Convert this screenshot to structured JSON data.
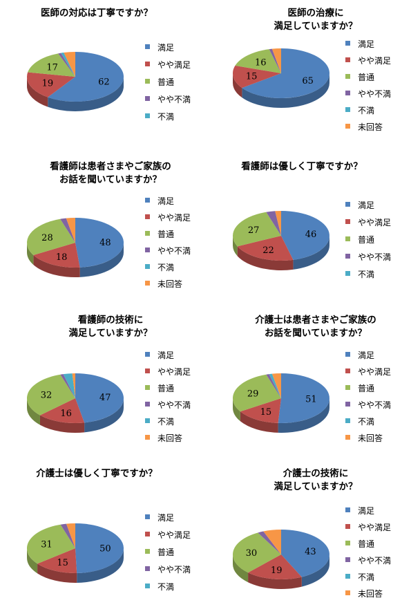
{
  "legend_labels": [
    "満足",
    "やや満足",
    "普通",
    "やや不満",
    "不満",
    "未回答"
  ],
  "colors": [
    "#4F81BD",
    "#C0504D",
    "#9BBB59",
    "#8064A2",
    "#4BACC6",
    "#F79646"
  ],
  "chart_data": [
    {
      "type": "pie",
      "title": "医師の対応は丁寧ですか？",
      "categories": [
        "満足",
        "やや満足",
        "普通",
        "やや不満",
        "不満",
        "未回答"
      ],
      "values": [
        62,
        19,
        17,
        1,
        1,
        4
      ],
      "data_labels": [
        "62",
        "19",
        "17",
        "",
        "",
        ""
      ],
      "legend": [
        "満足",
        "やや満足",
        "普通",
        "やや不満",
        "不満"
      ]
    },
    {
      "type": "pie",
      "title": "医師の治療に\n満足していますか？",
      "categories": [
        "満足",
        "やや満足",
        "普通",
        "やや不満",
        "不満",
        "未回答"
      ],
      "values": [
        65,
        15,
        16,
        1,
        0,
        3
      ],
      "data_labels": [
        "65",
        "15",
        "16",
        "",
        "",
        ""
      ],
      "legend": [
        "満足",
        "やや満足",
        "普通",
        "やや不満",
        "不満",
        "未回答"
      ]
    },
    {
      "type": "pie",
      "title": "看護師は患者さまやご家族の\nお話を聞いていますか？",
      "categories": [
        "満足",
        "やや満足",
        "普通",
        "やや不満",
        "不満",
        "未回答"
      ],
      "values": [
        48,
        18,
        28,
        2,
        0,
        3
      ],
      "data_labels": [
        "48",
        "18",
        "28",
        "",
        "",
        ""
      ],
      "legend": [
        "満足",
        "やや満足",
        "普通",
        "やや不満",
        "不満",
        "未回答"
      ]
    },
    {
      "type": "pie",
      "title": "看護師は優しく丁寧ですか？",
      "categories": [
        "満足",
        "やや満足",
        "普通",
        "やや不満",
        "不満",
        "未回答"
      ],
      "values": [
        46,
        22,
        27,
        3,
        0,
        2
      ],
      "data_labels": [
        "46",
        "22",
        "27",
        "",
        "",
        ""
      ],
      "legend": [
        "満足",
        "やや満足",
        "普通",
        "やや不満",
        "不満"
      ]
    },
    {
      "type": "pie",
      "title": "看護師の技術に\n満足していますか？",
      "categories": [
        "満足",
        "やや満足",
        "普通",
        "やや不満",
        "不満",
        "未回答"
      ],
      "values": [
        47,
        16,
        32,
        1,
        3,
        1
      ],
      "data_labels": [
        "47",
        "16",
        "32",
        "",
        "",
        ""
      ],
      "legend": [
        "満足",
        "やや満足",
        "普通",
        "やや不満",
        "不満",
        "未回答"
      ]
    },
    {
      "type": "pie",
      "title": "介護士は患者さまやご家族の\nお話を聞いていますか？",
      "categories": [
        "満足",
        "やや満足",
        "普通",
        "やや不満",
        "不満",
        "未回答"
      ],
      "values": [
        51,
        15,
        29,
        1,
        1,
        3
      ],
      "data_labels": [
        "51",
        "15",
        "29",
        "",
        "",
        ""
      ],
      "legend": [
        "満足",
        "やや満足",
        "普通",
        "やや不満",
        "不満",
        "未回答"
      ]
    },
    {
      "type": "pie",
      "title": "介護士は優しく丁寧ですか？",
      "categories": [
        "満足",
        "やや満足",
        "普通",
        "やや不満",
        "不満",
        "未回答"
      ],
      "values": [
        50,
        15,
        31,
        2,
        0,
        3
      ],
      "data_labels": [
        "50",
        "15",
        "31",
        "",
        "",
        ""
      ],
      "legend": [
        "満足",
        "やや満足",
        "普通",
        "やや不満",
        "不満"
      ]
    },
    {
      "type": "pie",
      "title": "介護士の技術に\n満足していますか？",
      "categories": [
        "満足",
        "やや満足",
        "普通",
        "やや不満",
        "不満",
        "未回答"
      ],
      "values": [
        43,
        19,
        30,
        2,
        0,
        6
      ],
      "data_labels": [
        "43",
        "19",
        "30",
        "",
        "",
        ""
      ],
      "legend": [
        "満足",
        "やや満足",
        "普通",
        "やや不満",
        "不満",
        "未回答"
      ]
    }
  ]
}
